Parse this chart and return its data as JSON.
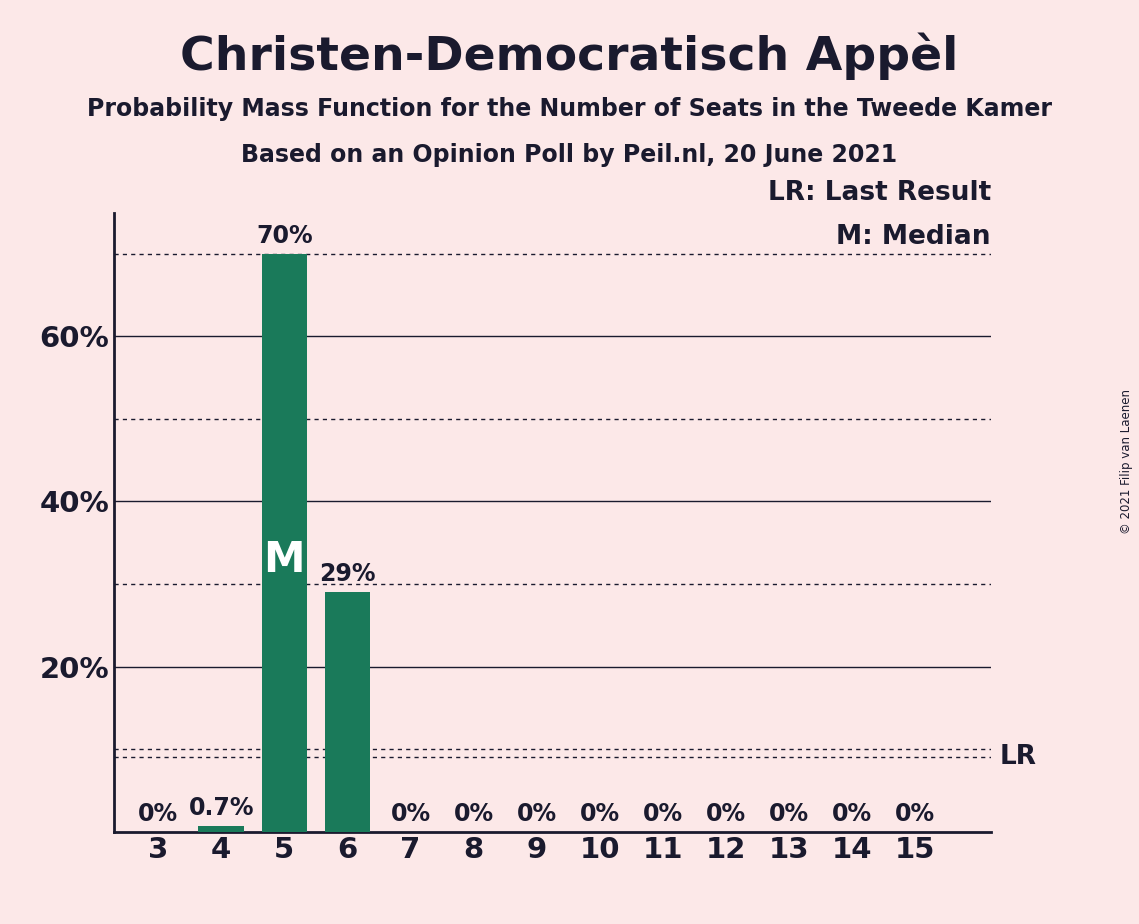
{
  "title": "Christen-Democratisch Appèl",
  "subtitle1": "Probability Mass Function for the Number of Seats in the Tweede Kamer",
  "subtitle2": "Based on an Opinion Poll by Peil.nl, 20 June 2021",
  "copyright": "© 2021 Filip van Laenen",
  "seats": [
    3,
    4,
    5,
    6,
    7,
    8,
    9,
    10,
    11,
    12,
    13,
    14,
    15
  ],
  "probabilities": [
    0.0,
    0.7,
    70.0,
    29.0,
    0.0,
    0.0,
    0.0,
    0.0,
    0.0,
    0.0,
    0.0,
    0.0,
    0.0
  ],
  "bar_labels": [
    "0%",
    "0.7%",
    "70%",
    "29%",
    "0%",
    "0%",
    "0%",
    "0%",
    "0%",
    "0%",
    "0%",
    "0%",
    "0%"
  ],
  "bar_color": "#1a7a5a",
  "background_color": "#fce8e8",
  "median_seat": 5,
  "lr_line_value": 9.0,
  "ylim_max": 75,
  "solid_gridlines": [
    20,
    40,
    60
  ],
  "dotted_gridlines": [
    10,
    30,
    50,
    70
  ],
  "ytick_labels": [
    "20%",
    "40%",
    "60%"
  ],
  "ytick_values": [
    20,
    40,
    60
  ],
  "title_fontsize": 34,
  "subtitle_fontsize": 17,
  "axis_tick_fontsize": 21,
  "bar_label_fontsize": 17,
  "legend_fontsize": 19,
  "median_label_fontsize": 30,
  "lr_label_fontsize": 19,
  "text_color": "#1a1a2e"
}
